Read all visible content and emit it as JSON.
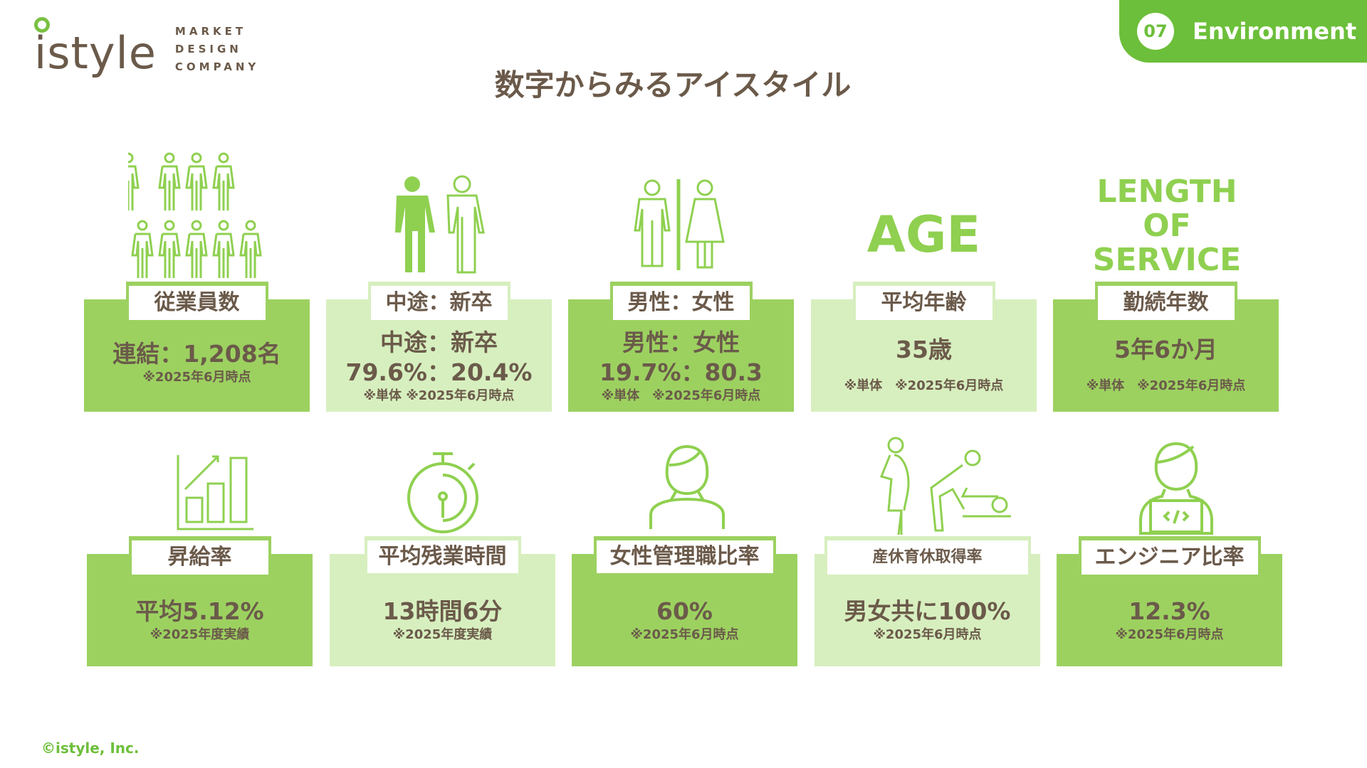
{
  "logo": {
    "word": "istyle",
    "sub": [
      "MARKET",
      "DESIGN",
      "COMPANY"
    ]
  },
  "tab": {
    "number": "07",
    "label": "Environment"
  },
  "title": "数字からみるアイスタイル",
  "colors": {
    "accent": "#6cbf3a",
    "card_dark": "#9cd160",
    "card_light": "#d7efbf",
    "text": "#6b5a4a"
  },
  "row1": [
    {
      "label": "従業員数",
      "values": [
        "連結：1,208名"
      ],
      "note": "※2025年6月時点",
      "icon": "people-group-icon"
    },
    {
      "label": "中途：新卒",
      "values": [
        "中途：新卒",
        "79.6%：20.4%"
      ],
      "note": "※単体 ※2025年6月時点",
      "icon": "two-persons-icon"
    },
    {
      "label": "男性：女性",
      "values": [
        "男性：女性",
        "19.7%：80.3"
      ],
      "note": "※単体　※2025年6月時点",
      "icon": "male-female-icon"
    },
    {
      "label": "平均年齢",
      "values": [
        "35歳"
      ],
      "note": "※単体　※2025年6月時点",
      "icon": "age-text",
      "big": "AGE"
    },
    {
      "label": "勤続年数",
      "values": [
        "5年6か月"
      ],
      "note": "※単体　※2025年6月時点",
      "icon": "length-of-service-text",
      "big": "LENGTH OF SERVICE"
    }
  ],
  "row2": [
    {
      "label": "昇給率",
      "values": [
        "平均5.12%"
      ],
      "note": "※2025年度実績",
      "icon": "bar-chart-icon"
    },
    {
      "label": "平均残業時間",
      "values": [
        "13時間6分"
      ],
      "note": "※2025年度実績",
      "icon": "stopwatch-icon"
    },
    {
      "label": "女性管理職比率",
      "values": [
        "60%"
      ],
      "note": "※2025年6月時点",
      "icon": "woman-icon"
    },
    {
      "label": "産休育休取得率",
      "values": [
        "男女共に100%"
      ],
      "note": "※2025年6月時点",
      "icon": "parental-leave-icon"
    },
    {
      "label": "エンジニア比率",
      "values": [
        "12.3%"
      ],
      "note": "※2025年6月時点",
      "icon": "engineer-laptop-icon"
    }
  ],
  "footer": "©istyle, Inc."
}
